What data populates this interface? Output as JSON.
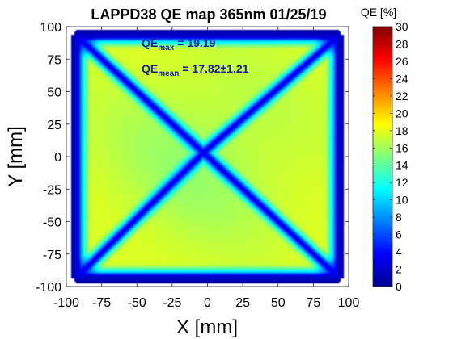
{
  "chart_data": {
    "type": "heatmap",
    "title": "LAPPD38 QE map 365nm 01/25/19",
    "xlabel": "X [mm]",
    "ylabel": "Y [mm]",
    "xlim": [
      -100,
      100
    ],
    "ylim": [
      -100,
      100
    ],
    "x_ticks": [
      -100,
      -75,
      -50,
      -25,
      0,
      25,
      50,
      75,
      100
    ],
    "x_tick_labels": [
      "-100",
      "-75",
      "-50",
      "-25",
      "0",
      "25",
      "50",
      "75",
      "100"
    ],
    "y_ticks": [
      100,
      75,
      50,
      25,
      0,
      -25,
      -50,
      -75,
      -100
    ],
    "y_tick_labels": [
      "100",
      "75",
      "50",
      "25",
      "0",
      "-25",
      "-50",
      "-75",
      "-100"
    ],
    "colorbar": {
      "label": "QE [%]",
      "range": [
        0,
        30
      ],
      "ticks": [
        30,
        28,
        26,
        24,
        22,
        20,
        18,
        16,
        14,
        12,
        10,
        8,
        6,
        4,
        2,
        0
      ],
      "tick_labels": [
        "30",
        "28",
        "26",
        "24",
        "22",
        "20",
        "18",
        "16",
        "14",
        "12",
        "10",
        "8",
        "6",
        "4",
        "2",
        "0"
      ],
      "colormap": "jet"
    },
    "annotations": {
      "qe_max_label": "QE",
      "qe_max_sub": "max",
      "qe_max_value": "= 19.19",
      "qe_mean_label": "QE",
      "qe_mean_sub": "mean",
      "qe_mean_value": "= 17.82±1.21",
      "color": "#1a1aa8"
    },
    "field": {
      "active_x": [
        -92,
        92
      ],
      "active_y": [
        -92,
        92
      ],
      "edge_qe": 2,
      "plateau_qe": 18,
      "center_qe": 16,
      "spacer_qe": 3,
      "center_x": -3,
      "center_y": 3
    }
  }
}
